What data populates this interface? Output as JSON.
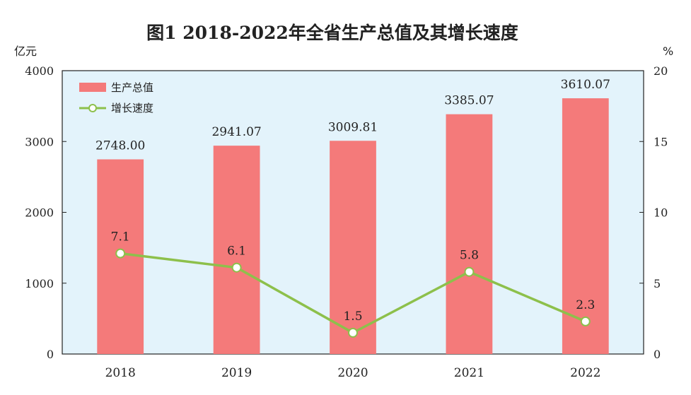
{
  "chart_data": {
    "type": "bar",
    "title": "图1  2018-2022年全省生产总值及其增长速度",
    "categories": [
      "2018",
      "2019",
      "2020",
      "2021",
      "2022"
    ],
    "series": [
      {
        "name": "生产总值",
        "type": "bar",
        "axis": "left",
        "values": [
          2748.0,
          2941.07,
          3009.81,
          3385.07,
          3610.07
        ],
        "labels": [
          "2748.00",
          "2941.07",
          "3009.81",
          "3385.07",
          "3610.07"
        ],
        "color": "#f47a7a"
      },
      {
        "name": "增长速度",
        "type": "line",
        "axis": "right",
        "values": [
          7.1,
          6.1,
          1.5,
          5.8,
          2.3
        ],
        "labels": [
          "7.1",
          "6.1",
          "1.5",
          "5.8",
          "2.3"
        ],
        "color": "#8dc04b"
      }
    ],
    "y_left": {
      "unit": "亿元",
      "ylim": [
        0,
        4000
      ],
      "ticks": [
        "0",
        "1000",
        "2000",
        "3000",
        "4000"
      ]
    },
    "y_right": {
      "unit": "%",
      "ylim": [
        0,
        20
      ],
      "ticks": [
        "0",
        "5",
        "10",
        "15",
        "20"
      ]
    },
    "plot_background": "#e3f3fb",
    "grid": false,
    "legend_position": "top-left"
  }
}
